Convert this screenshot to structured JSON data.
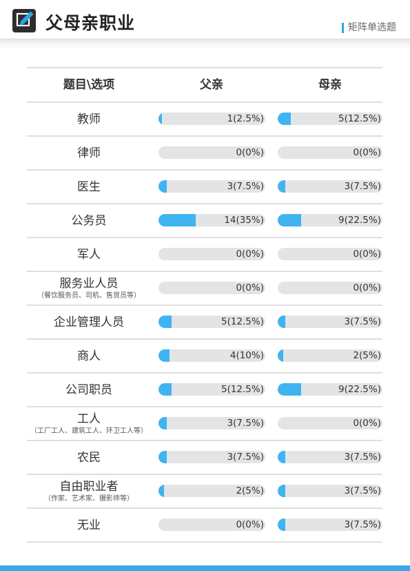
{
  "header": {
    "title": "父母亲职业",
    "subtitle": "矩阵单选题",
    "icon": "edit-pencil-icon"
  },
  "table": {
    "columns": [
      "题目\\选项",
      "父亲",
      "母亲"
    ],
    "rows": [
      {
        "label": "教师",
        "note": "",
        "father": {
          "text": "1(2.5%)",
          "pct": 2.5
        },
        "mother": {
          "text": "5(12.5%)",
          "pct": 12.5
        }
      },
      {
        "label": "律师",
        "note": "",
        "father": {
          "text": "0(0%)",
          "pct": 0
        },
        "mother": {
          "text": "0(0%)",
          "pct": 0
        }
      },
      {
        "label": "医生",
        "note": "",
        "father": {
          "text": "3(7.5%)",
          "pct": 7.5
        },
        "mother": {
          "text": "3(7.5%)",
          "pct": 7.5
        }
      },
      {
        "label": "公务员",
        "note": "",
        "father": {
          "text": "14(35%)",
          "pct": 35
        },
        "mother": {
          "text": "9(22.5%)",
          "pct": 22.5
        }
      },
      {
        "label": "军人",
        "note": "",
        "father": {
          "text": "0(0%)",
          "pct": 0
        },
        "mother": {
          "text": "0(0%)",
          "pct": 0
        }
      },
      {
        "label": "服务业人员",
        "note": "（餐饮服务员、司机、售货员等）",
        "father": {
          "text": "0(0%)",
          "pct": 0
        },
        "mother": {
          "text": "0(0%)",
          "pct": 0
        }
      },
      {
        "label": "企业管理人员",
        "note": "",
        "father": {
          "text": "5(12.5%)",
          "pct": 12.5
        },
        "mother": {
          "text": "3(7.5%)",
          "pct": 7.5
        }
      },
      {
        "label": "商人",
        "note": "",
        "father": {
          "text": "4(10%)",
          "pct": 10
        },
        "mother": {
          "text": "2(5%)",
          "pct": 5
        }
      },
      {
        "label": "公司职员",
        "note": "",
        "father": {
          "text": "5(12.5%)",
          "pct": 12.5
        },
        "mother": {
          "text": "9(22.5%)",
          "pct": 22.5
        }
      },
      {
        "label": "工人",
        "note": "（工厂工人、建筑工人、环卫工人等）",
        "father": {
          "text": "3(7.5%)",
          "pct": 7.5
        },
        "mother": {
          "text": "0(0%)",
          "pct": 0
        }
      },
      {
        "label": "农民",
        "note": "",
        "father": {
          "text": "3(7.5%)",
          "pct": 7.5
        },
        "mother": {
          "text": "3(7.5%)",
          "pct": 7.5
        }
      },
      {
        "label": "自由职业者",
        "note": "（作家、艺术家、摄影师等）",
        "father": {
          "text": "2(5%)",
          "pct": 5
        },
        "mother": {
          "text": "3(7.5%)",
          "pct": 7.5
        }
      },
      {
        "label": "无业",
        "note": "",
        "father": {
          "text": "0(0%)",
          "pct": 0
        },
        "mother": {
          "text": "3(7.5%)",
          "pct": 7.5
        }
      }
    ]
  },
  "colors": {
    "accent": "#3fb4f0",
    "bar_track": "#e3e4e6",
    "footer": "#3aa7ea"
  }
}
